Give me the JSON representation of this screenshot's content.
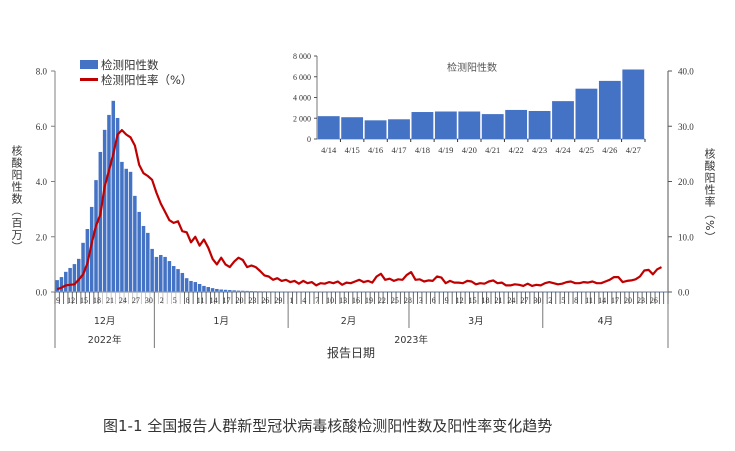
{
  "caption": "图1-1    全国报告人群新型冠状病毒核酸检测阳性数及阳性率变化趋势",
  "legend": {
    "bars": "检测阳性数",
    "line": "检测阳性率（%）"
  },
  "axes": {
    "left_label": "核酸阳性数（百万）",
    "right_label": "核酸阳性率（%）",
    "x_title": "报告日期",
    "left_ticks": [
      "0.0",
      "2.0",
      "4.0",
      "6.0",
      "8.0"
    ],
    "right_ticks": [
      "0.0",
      "10.0",
      "20.0",
      "30.0",
      "40.0"
    ],
    "months": [
      "12月",
      "1月",
      "2月",
      "3月",
      "4月"
    ],
    "years": [
      "2022年",
      "2023年"
    ]
  },
  "colors": {
    "bar": "#4472C4",
    "line": "#C00000",
    "axis": "#7f7f7f"
  },
  "chart_data": [
    {
      "type": "bar+line",
      "title": "",
      "xlabel": "报告日期",
      "ylabel": "核酸阳性数（百万）",
      "y2label": "核酸阳性率（%）",
      "ylim": [
        0,
        8
      ],
      "y2lim": [
        0,
        40
      ],
      "x_start": "2022-12-09",
      "x_end": "2023-04-27",
      "x_tick_labels": [
        "9",
        "12",
        "15",
        "18",
        "21",
        "24",
        "27",
        "30",
        "2",
        "5",
        "8",
        "11",
        "14",
        "17",
        "20",
        "23",
        "26",
        "29",
        "1",
        "4",
        "7",
        "10",
        "13",
        "16",
        "19",
        "22",
        "25",
        "28",
        "3",
        "6",
        "9",
        "12",
        "15",
        "18",
        "21",
        "24",
        "27",
        "30",
        "2",
        "5",
        "8",
        "11",
        "14",
        "17",
        "20",
        "23",
        "26"
      ],
      "series": [
        {
          "name": "检测阳性数",
          "type": "bar",
          "axis": "left",
          "values": [
            0.43,
            0.54,
            0.73,
            0.87,
            1.01,
            1.2,
            1.78,
            2.28,
            3.08,
            4.05,
            5.07,
            5.87,
            6.41,
            6.92,
            6.3,
            4.71,
            4.46,
            4.35,
            3.48,
            2.9,
            2.39,
            2.14,
            1.56,
            1.27,
            1.34,
            1.27,
            1.12,
            0.94,
            0.83,
            0.69,
            0.5,
            0.4,
            0.36,
            0.29,
            0.22,
            0.18,
            0.14,
            0.11,
            0.09,
            0.08,
            0.07,
            0.06,
            0.05,
            0.045,
            0.04,
            0.035,
            0.03,
            0.027,
            0.024,
            0.022,
            0.02,
            0.018,
            0.016,
            0.015,
            0.014,
            0.013,
            0.012,
            0.011,
            0.01,
            0.01,
            0.009,
            0.009,
            0.008,
            0.008,
            0.008,
            0.007,
            0.007,
            0.007,
            0.006,
            0.006,
            0.006,
            0.006,
            0.005,
            0.005,
            0.005,
            0.005,
            0.005,
            0.005,
            0.004,
            0.004,
            0.004,
            0.004,
            0.004,
            0.004,
            0.004,
            0.004,
            0.004,
            0.004,
            0.003,
            0.003,
            0.003,
            0.003,
            0.003,
            0.003,
            0.003,
            0.003,
            0.003,
            0.003,
            0.003,
            0.003,
            0.003,
            0.003,
            0.003,
            0.003,
            0.003,
            0.003,
            0.003,
            0.003,
            0.003,
            0.003,
            0.003,
            0.003,
            0.003,
            0.003,
            0.003,
            0.003,
            0.003,
            0.003,
            0.003,
            0.003,
            0.002,
            0.002,
            0.002,
            0.002,
            0.002,
            0.002,
            0.002,
            0.002,
            0.002,
            0.002,
            0.002,
            0.002,
            0.002,
            0.002,
            0.002,
            0.002,
            0.003,
            0.003,
            0.004,
            0.005,
            0.006,
            0.007
          ]
        },
        {
          "name": "检测阳性率（%）",
          "type": "line",
          "axis": "right",
          "values": [
            0.5,
            0.8,
            1.2,
            1.3,
            1.4,
            2.2,
            3.2,
            5.2,
            8.8,
            12,
            14,
            19,
            22,
            25,
            28.5,
            29.3,
            28.5,
            28,
            26.5,
            23,
            21.5,
            21,
            20.3,
            18,
            16,
            14.5,
            13,
            12.5,
            12.8,
            11,
            10.8,
            9,
            10,
            8.4,
            9.5,
            8,
            6,
            5,
            6.2,
            5,
            4.5,
            5.5,
            6.2,
            5.8,
            4.5,
            4.8,
            4.5,
            3.8,
            3,
            2.8,
            2.2,
            2.5,
            2,
            2.2,
            1.8,
            2,
            1.5,
            2,
            1.6,
            1.8,
            1.2,
            1.6,
            1.5,
            1.8,
            1.6,
            1.9,
            1.3,
            1.7,
            1.6,
            1.9,
            2.2,
            1.8,
            2,
            1.7,
            2.8,
            3.3,
            2.2,
            2.4,
            2,
            2.3,
            2.2,
            3.1,
            3.6,
            2.2,
            2.3,
            1.9,
            2.1,
            2,
            2.8,
            2.6,
            1.6,
            2,
            1.7,
            1.7,
            1.6,
            2,
            1.9,
            1.4,
            1.6,
            1.5,
            1.9,
            2.1,
            1.6,
            1.7,
            1.2,
            1.2,
            1.4,
            1.3,
            1.1,
            1.5,
            1.1,
            1.3,
            1.2,
            1.6,
            1.8,
            1.6,
            1.4,
            1.5,
            1.8,
            1.9,
            1.6,
            1.6,
            1.8,
            1.7,
            1.9,
            1.6,
            1.6,
            1.9,
            2.2,
            2.7,
            2.7,
            1.8,
            2,
            2.1,
            2.3,
            2.8,
            3.9,
            4,
            3.2,
            4.1,
            4.5
          ]
        }
      ]
    },
    {
      "type": "bar",
      "title": "检测阳性数",
      "xlabel": "",
      "ylabel": "",
      "ylim": [
        0,
        8000
      ],
      "y_ticks": [
        "0",
        "2 000",
        "4 000",
        "6 000",
        "8 000"
      ],
      "categories": [
        "4/14",
        "4/15",
        "4/16",
        "4/17",
        "4/18",
        "4/19",
        "4/20",
        "4/21",
        "4/22",
        "4/23",
        "4/24",
        "4/25",
        "4/26",
        "4/27"
      ],
      "values": [
        2200,
        2100,
        1800,
        1900,
        2600,
        2650,
        2650,
        2400,
        2800,
        2700,
        3650,
        4850,
        5600,
        6700
      ]
    }
  ]
}
